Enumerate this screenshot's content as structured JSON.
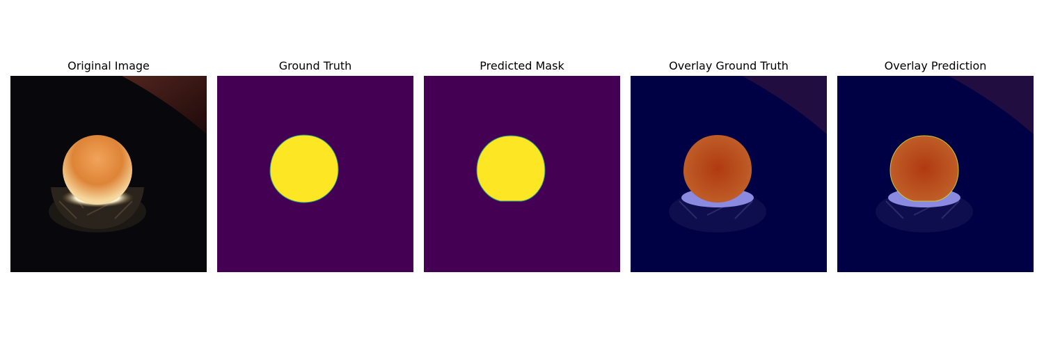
{
  "figure": {
    "panels": [
      {
        "title": "Original Image"
      },
      {
        "title": "Ground Truth"
      },
      {
        "title": "Predicted Mask"
      },
      {
        "title": "Overlay Ground Truth"
      },
      {
        "title": "Overlay Prediction"
      }
    ]
  },
  "colors": {
    "mask_background": "#440154",
    "mask_foreground": "#fde725",
    "overlay_tint": "#000044"
  }
}
